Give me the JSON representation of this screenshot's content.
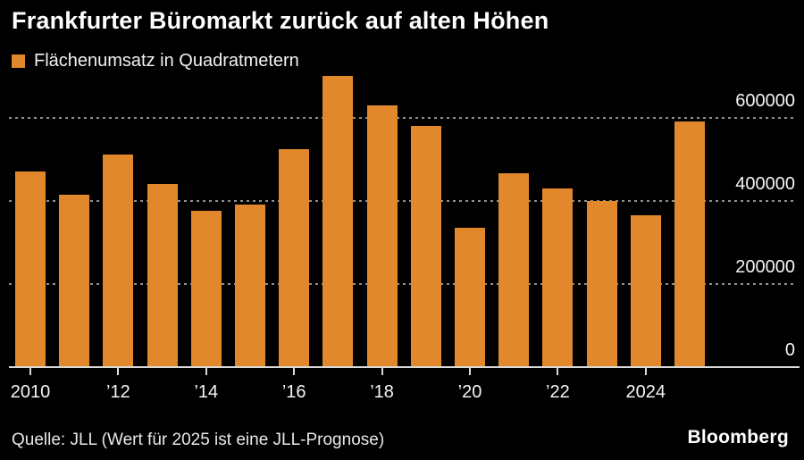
{
  "title": "Frankfurter Büromarkt zurück auf alten Höhen",
  "legend": {
    "label": "Flächenumsatz in Quadratmetern"
  },
  "footer": {
    "source": "Quelle: JLL (Wert für 2025 ist eine JLL-Prognose)",
    "brand": "Bloomberg"
  },
  "colors": {
    "background": "#000000",
    "bar": "#e0882b",
    "axis": "#d9d9d9",
    "gridline": "#8f8f8f",
    "title_text": "#ffffff",
    "label_text": "#f5f5f5"
  },
  "chart_data": {
    "type": "bar",
    "title": "Frankfurter Büromarkt zurück auf alten Höhen",
    "series_label": "Flächenumsatz in Quadratmetern",
    "categories": [
      "2010",
      "2011",
      "2012",
      "2013",
      "2014",
      "2015",
      "2016",
      "2017",
      "2018",
      "2019",
      "2020",
      "2021",
      "2022",
      "2023",
      "2024",
      "2025"
    ],
    "values": [
      470000,
      415000,
      510000,
      440000,
      375000,
      390000,
      525000,
      700000,
      630000,
      580000,
      335000,
      465000,
      430000,
      400000,
      365000,
      590000
    ],
    "xlabel": "",
    "ylabel": "",
    "x_tick_labels": [
      "2010",
      "’12",
      "’14",
      "’16",
      "’18",
      "’20",
      "’22",
      "2024"
    ],
    "x_tick_every": 2,
    "y_ticks": [
      0,
      200000,
      400000,
      600000
    ],
    "y_tick_labels": [
      "0",
      "200000",
      "400000",
      "600000"
    ],
    "ylim": [
      0,
      715000
    ],
    "grid": "dashed-horizontal",
    "legend_position": "top-left",
    "note": "Wert für 2025 ist eine JLL-Prognose"
  }
}
